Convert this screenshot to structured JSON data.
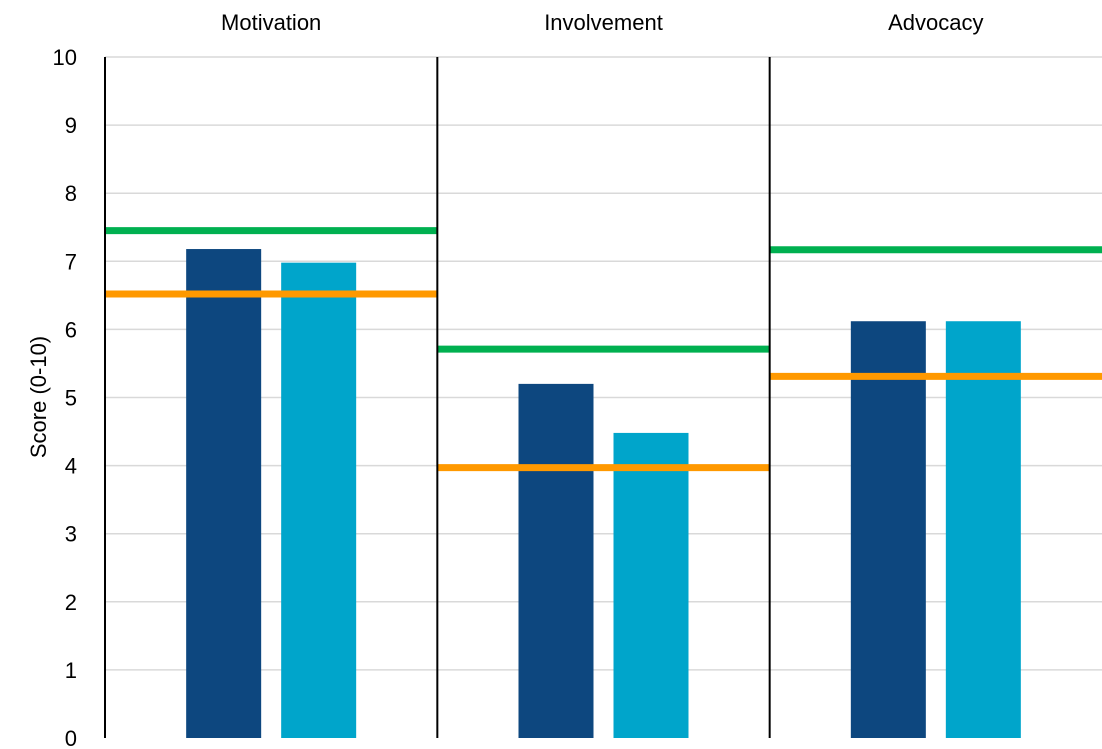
{
  "chart_data": {
    "type": "bar",
    "categories": [
      "Motivation",
      "Involvement",
      "Advocacy"
    ],
    "series": [
      {
        "values": [
          7.18,
          5.2,
          6.12
        ],
        "color": "#0D477F"
      },
      {
        "values": [
          6.98,
          4.48,
          6.12
        ],
        "color": "#00A5CB"
      }
    ],
    "reference_lines": [
      {
        "values": [
          7.45,
          5.71,
          7.17
        ],
        "color": "#00B050"
      },
      {
        "values": [
          6.52,
          3.97,
          5.31
        ],
        "color": "#FF9900"
      }
    ],
    "ylabel": "Score (0-10)",
    "ylim": [
      0,
      10
    ],
    "yticks": [
      "0",
      "1",
      "2",
      "3",
      "4",
      "5",
      "6",
      "7",
      "8",
      "9",
      "10"
    ],
    "grid": true,
    "legend": "none"
  }
}
